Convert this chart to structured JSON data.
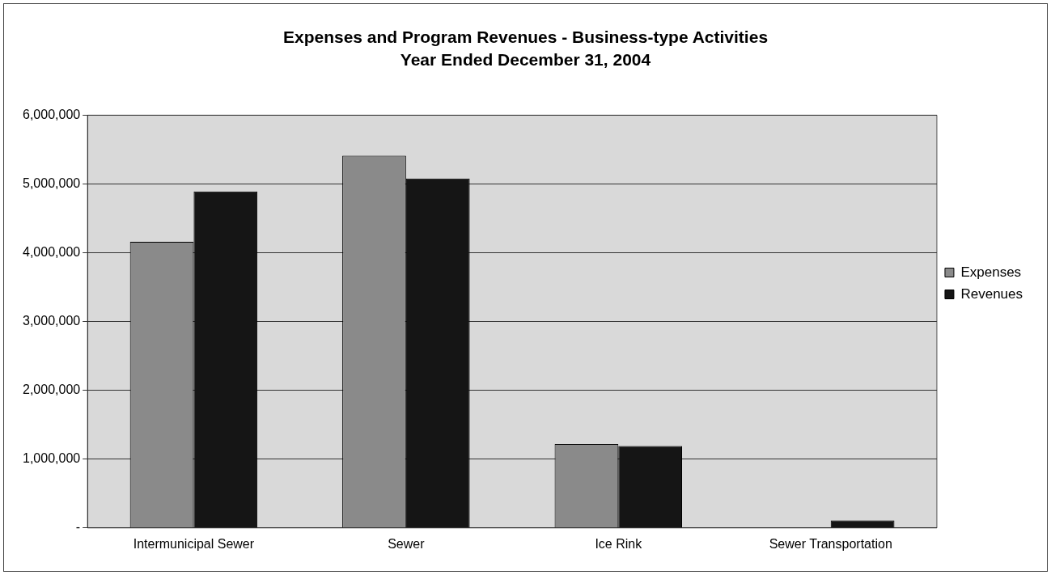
{
  "chart_data": {
    "type": "bar",
    "title": "Expenses and Program Revenues - Business-type Activities",
    "subtitle": "Year Ended December 31, 2004",
    "categories": [
      "Intermunicipal Sewer",
      "Sewer",
      "Ice Rink",
      "Sewer Transportation"
    ],
    "series": [
      {
        "name": "Expenses",
        "color": "#8a8a8a",
        "values": [
          4160000,
          5410000,
          1220000,
          0
        ]
      },
      {
        "name": "Revenues",
        "color": "#151515",
        "values": [
          4890000,
          5080000,
          1190000,
          110000
        ]
      }
    ],
    "ylim": [
      0,
      6000000
    ],
    "yticks": [
      {
        "value": 0,
        "label": "-"
      },
      {
        "value": 1000000,
        "label": "1,000,000"
      },
      {
        "value": 2000000,
        "label": "2,000,000"
      },
      {
        "value": 3000000,
        "label": "3,000,000"
      },
      {
        "value": 4000000,
        "label": "4,000,000"
      },
      {
        "value": 5000000,
        "label": "5,000,000"
      },
      {
        "value": 6000000,
        "label": "6,000,000"
      }
    ],
    "grid": "y",
    "legend": "right"
  }
}
